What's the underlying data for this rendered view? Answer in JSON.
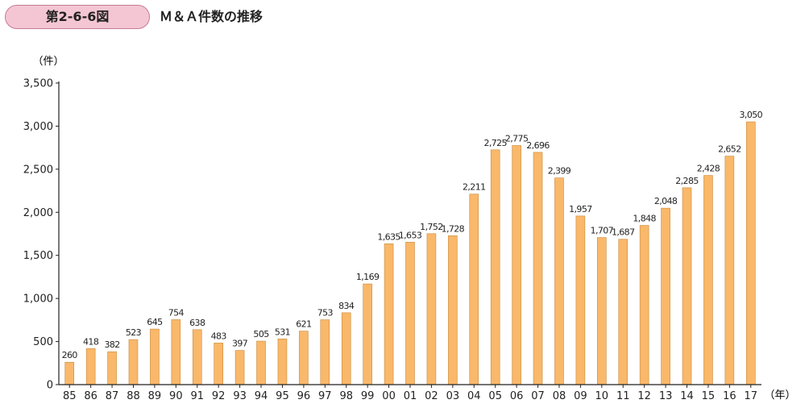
{
  "header": {
    "figure_number": "第2-6-6図",
    "title": "Ｍ＆Ａ件数の推移"
  },
  "colors": {
    "bar": "#f9b86a",
    "bar_stroke": "#c98a3e",
    "axis": "#222222"
  },
  "chart_data": {
    "type": "bar",
    "title": "Ｍ＆Ａ件数の推移",
    "ylabel": "（件）",
    "xlabel": "（年）",
    "ylim": [
      0,
      3500
    ],
    "yticks": [
      0,
      500,
      1000,
      1500,
      2000,
      2500,
      3000,
      3500
    ],
    "ytick_labels": [
      "0",
      "500",
      "1,000",
      "1,500",
      "2,000",
      "2,500",
      "3,000",
      "3,500"
    ],
    "grid": false,
    "categories": [
      "85",
      "86",
      "87",
      "88",
      "89",
      "90",
      "91",
      "92",
      "93",
      "94",
      "95",
      "96",
      "97",
      "98",
      "99",
      "00",
      "01",
      "02",
      "03",
      "04",
      "05",
      "06",
      "07",
      "08",
      "09",
      "10",
      "11",
      "12",
      "13",
      "14",
      "15",
      "16",
      "17"
    ],
    "values": [
      260,
      418,
      382,
      523,
      645,
      754,
      638,
      483,
      397,
      505,
      531,
      621,
      753,
      834,
      1169,
      1635,
      1653,
      1752,
      1728,
      2211,
      2725,
      2775,
      2696,
      2399,
      1957,
      1707,
      1687,
      1848,
      2048,
      2285,
      2428,
      2652,
      3050
    ],
    "value_labels": [
      "260",
      "418",
      "382",
      "523",
      "645",
      "754",
      "638",
      "483",
      "397",
      "505",
      "531",
      "621",
      "753",
      "834",
      "1,169",
      "1,635",
      "1,653",
      "1,752",
      "1,728",
      "2,211",
      "2,725",
      "2,775",
      "2,696",
      "2,399",
      "1,957",
      "1,707",
      "1,687",
      "1,848",
      "2,048",
      "2,285",
      "2,428",
      "2,652",
      "3,050"
    ]
  }
}
